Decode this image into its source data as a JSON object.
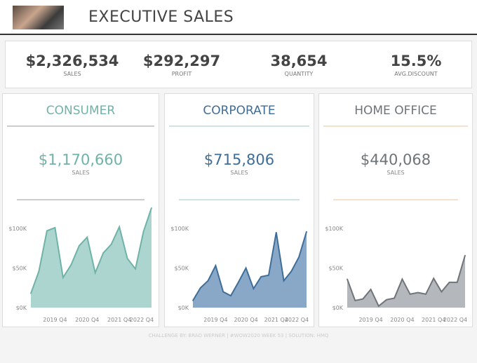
{
  "header": {
    "title": "EXECUTIVE SALES"
  },
  "kpis": [
    {
      "value": "$2,326,534",
      "label": "SALES"
    },
    {
      "value": "$292,297",
      "label": "PROFIT"
    },
    {
      "value": "38,654",
      "label": "QUANTITY"
    },
    {
      "value": "15.5%",
      "label": "AVG.DISCOUNT"
    }
  ],
  "segments": [
    {
      "name": "CONSUMER",
      "sales": "$1,170,660",
      "sales_label": "SALES",
      "color": "#6fb3a8",
      "fill": "#acd5cf",
      "line_color": "#cccccc"
    },
    {
      "name": "CORPORATE",
      "sales": "$715,806",
      "sales_label": "SALES",
      "color": "#3e6e98",
      "fill": "#89a8c8",
      "line_color": "#cfe3e3"
    },
    {
      "name": "HOME OFFICE",
      "sales": "$440,068",
      "sales_label": "SALES",
      "color": "#6f7479",
      "fill": "#b4b8bc",
      "line_color": "#f3e2d0"
    }
  ],
  "chart_data": [
    {
      "type": "area",
      "segment": "CONSUMER",
      "x": [
        "2019 Q1",
        "2019 Q2",
        "2019 Q3",
        "2019 Q4",
        "2020 Q1",
        "2020 Q2",
        "2020 Q3",
        "2020 Q4",
        "2021 Q1",
        "2021 Q2",
        "2021 Q3",
        "2021 Q4",
        "2022 Q1",
        "2022 Q2",
        "2022 Q3",
        "2022 Q4"
      ],
      "values": [
        18,
        46,
        97,
        101,
        38,
        54,
        78,
        89,
        44,
        69,
        80,
        102,
        62,
        49,
        96,
        126
      ],
      "unit": "K",
      "yticks": [
        "$0K",
        "$50K",
        "$100K"
      ],
      "xticks": [
        "2019 Q4",
        "2020 Q4",
        "2021 Q4",
        "2022 Q4"
      ]
    },
    {
      "type": "area",
      "segment": "CORPORATE",
      "x": [
        "2019 Q1",
        "2019 Q2",
        "2019 Q3",
        "2019 Q4",
        "2020 Q1",
        "2020 Q2",
        "2020 Q3",
        "2020 Q4",
        "2021 Q1",
        "2021 Q2",
        "2021 Q3",
        "2021 Q4",
        "2022 Q1",
        "2022 Q2",
        "2022 Q3",
        "2022 Q4"
      ],
      "values": [
        9,
        25,
        34,
        53,
        20,
        15,
        32,
        50,
        24,
        39,
        41,
        95,
        34,
        46,
        64,
        96
      ],
      "unit": "K",
      "yticks": [
        "$0K",
        "$50K",
        "$100K"
      ],
      "xticks": [
        "2019 Q4",
        "2020 Q4",
        "2021 Q4",
        "2022 Q4"
      ]
    },
    {
      "type": "area",
      "segment": "HOME OFFICE",
      "x": [
        "2019 Q1",
        "2019 Q2",
        "2019 Q3",
        "2019 Q4",
        "2020 Q1",
        "2020 Q2",
        "2020 Q3",
        "2020 Q4",
        "2021 Q1",
        "2021 Q2",
        "2021 Q3",
        "2021 Q4",
        "2022 Q1",
        "2022 Q2",
        "2022 Q3",
        "2022 Q4"
      ],
      "values": [
        36,
        9,
        11,
        23,
        2,
        10,
        12,
        36,
        17,
        19,
        17,
        37,
        20,
        32,
        32,
        66
      ],
      "unit": "K",
      "yticks": [
        "$0K",
        "$50K",
        "$100K"
      ],
      "xticks": [
        "2019 Q4",
        "2020 Q4",
        "2021 Q4",
        "2022 Q4"
      ]
    }
  ],
  "footer": "CHALLENGE BY:  BRAD WERNER | #WOW2020 WEEK 53 | SOLUTION: HMQ"
}
